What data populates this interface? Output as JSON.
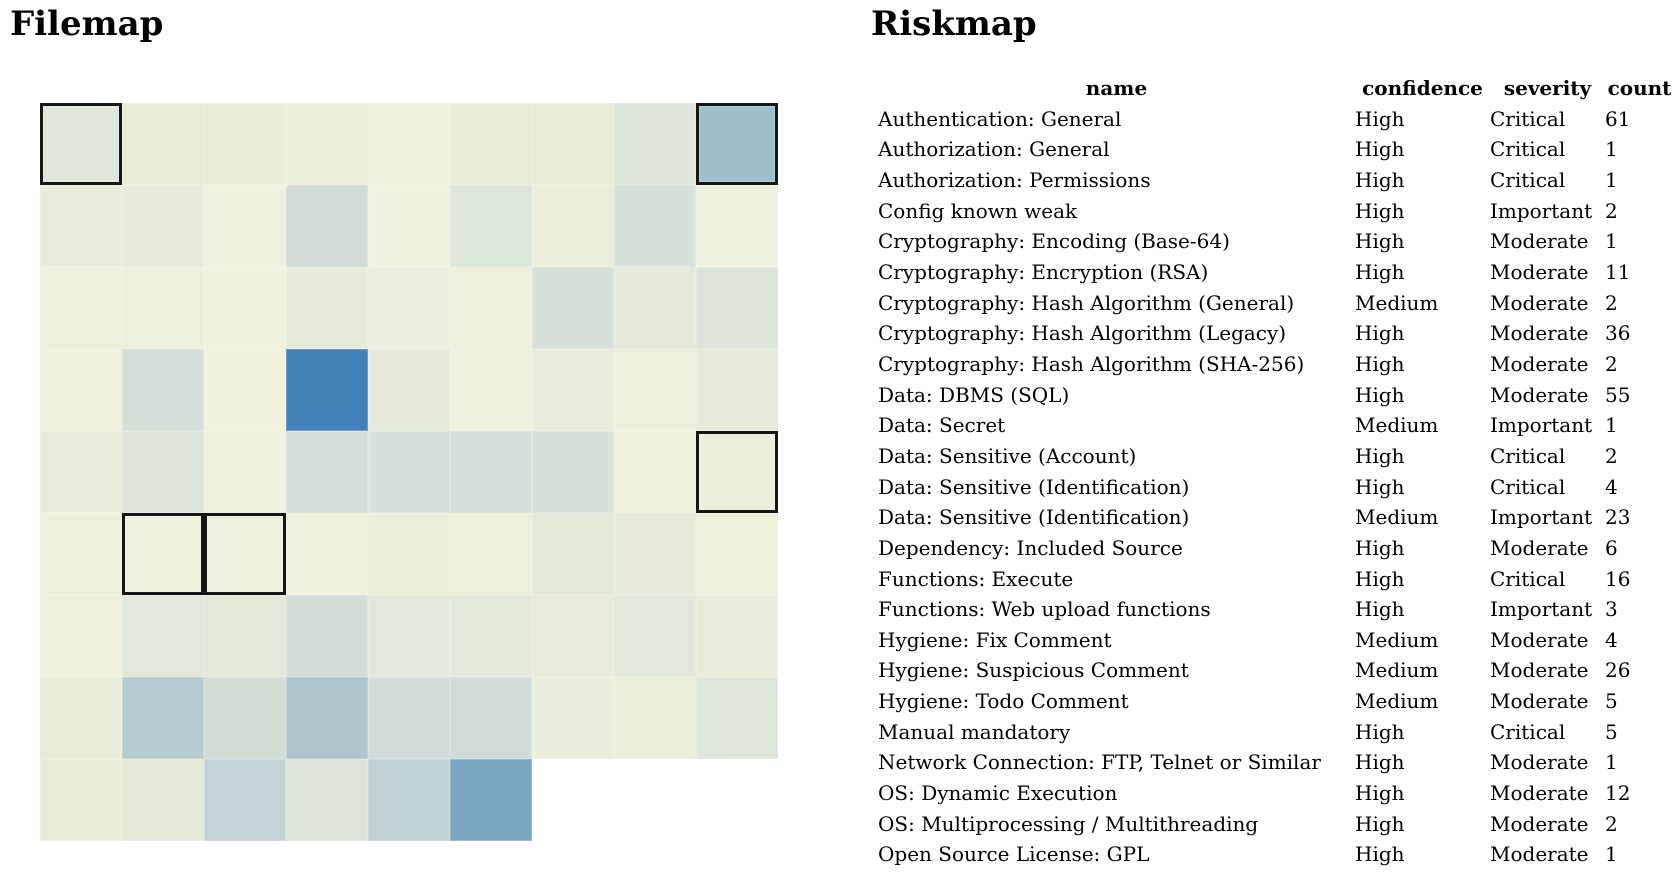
{
  "filemap": {
    "title": "Filemap"
  },
  "riskmap": {
    "title": "Riskmap"
  },
  "chart_data": [
    {
      "type": "heatmap",
      "title": "Filemap",
      "grid_columns": 9,
      "grid_rows": 9,
      "legend": "none shown; cell color encodes risk density from pale cream (low) to strong blue (high)",
      "accent_high_color": "#4381b8",
      "highlight_border_color": "#161616",
      "cell_colors": [
        [
          "#dfe6da",
          "#e9ecd9",
          "#eaedd9",
          "#edefdb",
          "#eff0dd",
          "#e9ecd9",
          "#eaedda",
          "#dde4d8",
          "#9fbecb"
        ],
        [
          "#e9ecdb",
          "#e6eadb",
          "#f0f1de",
          "#d2dcd6",
          "#f0f1de",
          "#dde6da",
          "#ecefdc",
          "#d8e1d8",
          "#eef0dd"
        ],
        [
          "#eef0de",
          "#eef0de",
          "#f0f1df",
          "#e7ebdc",
          "#ecefdd",
          "#eff0de",
          "#d6e0d8",
          "#e5e9da",
          "#dce4d9"
        ],
        [
          "#eff0dd",
          "#d5ded8",
          "#f0f1de",
          "#4381b8",
          "#e4e9d9",
          "#eff0dd",
          "#e9ecda",
          "#eef0dd",
          "#e6ead9"
        ],
        [
          "#eaeddb",
          "#dde5da",
          "#eff0dd",
          "#d6e0da",
          "#d7e0da",
          "#d6dfda",
          "#d7e0d9",
          "#eef0dc",
          "#ecefdb"
        ],
        [
          "#eff0dc",
          "#f0f1dd",
          "#f0f1dd",
          "#eff0dc",
          "#ebeeda",
          "#eef0dc",
          "#e2e8da",
          "#e7ebd9",
          "#eff0dc"
        ],
        [
          "#f0f1dd",
          "#e1e8db",
          "#e2e8da",
          "#d2dcda",
          "#e2e8db",
          "#e3e9db",
          "#e9ecdb",
          "#e1e7da",
          "#eaeddc"
        ],
        [
          "#e8ecd9",
          "#b6cbd0",
          "#d3ddd4",
          "#aec5cd",
          "#d2dcdb",
          "#d0dbda",
          "#eaeddb",
          "#ebeeda",
          "#dee6da"
        ],
        [
          "#e9ecd9",
          "#e5ead8",
          "#c3d3d6",
          "#dce4d8",
          "#c0d1d5",
          "#7aa6c2"
        ]
      ],
      "highlighted_cells": [
        {
          "row": 0,
          "col": 0
        },
        {
          "row": 0,
          "col": 8
        },
        {
          "row": 4,
          "col": 8
        },
        {
          "row": 5,
          "col": 1
        },
        {
          "row": 5,
          "col": 2
        }
      ]
    },
    {
      "type": "table",
      "title": "Riskmap",
      "columns": [
        "name",
        "confidence",
        "severity",
        "count"
      ],
      "rows": [
        [
          "Authentication: General",
          "High",
          "Critical",
          61
        ],
        [
          "Authorization: General",
          "High",
          "Critical",
          1
        ],
        [
          "Authorization: Permissions",
          "High",
          "Critical",
          1
        ],
        [
          "Config known weak",
          "High",
          "Important",
          2
        ],
        [
          "Cryptography: Encoding (Base-64)",
          "High",
          "Moderate",
          1
        ],
        [
          "Cryptography: Encryption (RSA)",
          "High",
          "Moderate",
          11
        ],
        [
          "Cryptography: Hash Algorithm (General)",
          "Medium",
          "Moderate",
          2
        ],
        [
          "Cryptography: Hash Algorithm (Legacy)",
          "High",
          "Moderate",
          36
        ],
        [
          "Cryptography: Hash Algorithm (SHA-256)",
          "High",
          "Moderate",
          2
        ],
        [
          "Data: DBMS (SQL)",
          "High",
          "Moderate",
          55
        ],
        [
          "Data: Secret",
          "Medium",
          "Important",
          1
        ],
        [
          "Data: Sensitive (Account)",
          "High",
          "Critical",
          2
        ],
        [
          "Data: Sensitive (Identification)",
          "High",
          "Critical",
          4
        ],
        [
          "Data: Sensitive (Identification)",
          "Medium",
          "Important",
          23
        ],
        [
          "Dependency: Included Source",
          "High",
          "Moderate",
          6
        ],
        [
          "Functions: Execute",
          "High",
          "Critical",
          16
        ],
        [
          "Functions: Web upload functions",
          "High",
          "Important",
          3
        ],
        [
          "Hygiene: Fix Comment",
          "Medium",
          "Moderate",
          4
        ],
        [
          "Hygiene: Suspicious Comment",
          "Medium",
          "Moderate",
          26
        ],
        [
          "Hygiene: Todo Comment",
          "Medium",
          "Moderate",
          5
        ],
        [
          "Manual mandatory",
          "High",
          "Critical",
          5
        ],
        [
          "Network Connection: FTP, Telnet or Similar",
          "High",
          "Moderate",
          1
        ],
        [
          "OS: Dynamic Execution",
          "High",
          "Moderate",
          12
        ],
        [
          "OS: Multiprocessing / Multithreading",
          "High",
          "Moderate",
          2
        ],
        [
          "Open Source License: GPL",
          "High",
          "Moderate",
          1
        ]
      ]
    }
  ]
}
